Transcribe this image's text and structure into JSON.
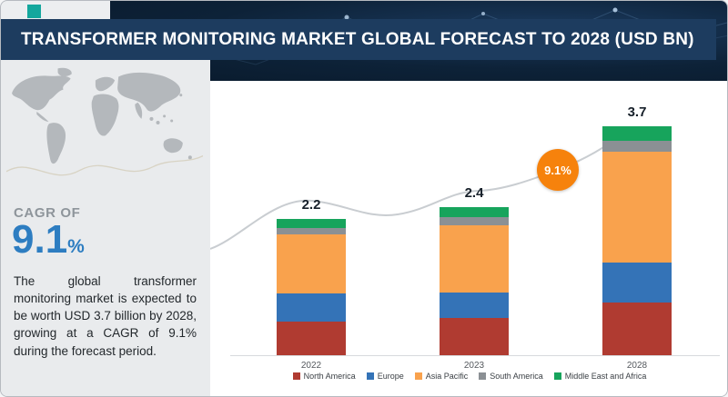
{
  "header": {
    "title": "TRANSFORMER MONITORING MARKET GLOBAL FORECAST TO 2028 (USD BN)"
  },
  "sidebar": {
    "cagr_label": "CAGR OF",
    "cagr_value": "9.1",
    "cagr_percent_sign": "%",
    "description": "The global transformer monitoring market is expected to be worth USD 3.7 billion by 2028, growing at a CAGR of 9.1% during the forecast period."
  },
  "chart": {
    "badge_label": "9.1%"
  },
  "chart_data": {
    "type": "bar",
    "stacked": true,
    "title": "TRANSFORMER MONITORING MARKET GLOBAL FORECAST TO 2028 (USD BN)",
    "categories": [
      "2022",
      "2023",
      "2028"
    ],
    "totals": [
      2.2,
      2.4,
      3.7
    ],
    "series": [
      {
        "name": "North America",
        "color": "#b03b31",
        "values": [
          0.55,
          0.6,
          0.85
        ]
      },
      {
        "name": "Europe",
        "color": "#3473b7",
        "values": [
          0.45,
          0.42,
          0.65
        ]
      },
      {
        "name": "Asia Pacific",
        "color": "#f9a24d",
        "values": [
          0.95,
          1.08,
          1.8
        ]
      },
      {
        "name": "South America",
        "color": "#8b9094",
        "values": [
          0.11,
          0.13,
          0.17
        ]
      },
      {
        "name": "Middle East and Africa",
        "color": "#17a45c",
        "values": [
          0.14,
          0.17,
          0.23
        ]
      }
    ],
    "xlabel": "",
    "ylabel": "USD BN",
    "ylim": [
      0,
      4
    ],
    "grid": false,
    "legend_position": "bottom",
    "annotation": "9.1%"
  },
  "colors": {
    "header_bg": "#1d3c5f",
    "accent_teal": "#14a79d",
    "cagr_blue": "#2d7dc1",
    "badge_orange": "#f6820c",
    "panel_bg": "#e9ebed"
  }
}
